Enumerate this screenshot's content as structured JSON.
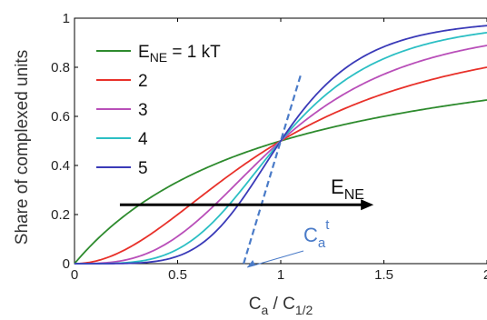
{
  "chart_data": {
    "type": "line",
    "ylabel": "Share of complexed units",
    "xlabel": {
      "main": "C",
      "sub_a": "a",
      "sep": " / C",
      "sub_b": "1/2"
    },
    "xlim": [
      0,
      2
    ],
    "ylim": [
      0,
      1
    ],
    "x_ticks": [
      {
        "value": 0,
        "label": "0"
      },
      {
        "value": 0.5,
        "label": "0.5"
      },
      {
        "value": 1,
        "label": "1"
      },
      {
        "value": 1.5,
        "label": "1.5"
      },
      {
        "value": 2,
        "label": "2"
      }
    ],
    "y_ticks": [
      {
        "value": 0,
        "label": "0"
      },
      {
        "value": 0.2,
        "label": "0.2"
      },
      {
        "value": 0.4,
        "label": "0.4"
      },
      {
        "value": 0.6,
        "label": "0.6"
      },
      {
        "value": 0.8,
        "label": "0.8"
      },
      {
        "value": 1,
        "label": "1"
      }
    ],
    "legend": {
      "placement": "top-left",
      "first_prefix": "E",
      "first_sub": "NE",
      "first_suffix": " = 1 kT"
    },
    "series": [
      {
        "name": "1",
        "label": "E_NE = 1 kT",
        "hill_n": 1,
        "color": "#2e8b2e"
      },
      {
        "name": "2",
        "label": "2",
        "hill_n": 2,
        "color": "#e8312a"
      },
      {
        "name": "3",
        "label": "3",
        "hill_n": 3,
        "color": "#b94fb9"
      },
      {
        "name": "4",
        "label": "4",
        "hill_n": 4,
        "color": "#2cbfc4"
      },
      {
        "name": "5",
        "label": "5",
        "hill_n": 5,
        "color": "#3a3ab8"
      }
    ],
    "arrow_annotation": {
      "main": "E",
      "sub": "NE",
      "x_from": 0.22,
      "x_to": 1.45,
      "y": 0.24,
      "color": "#000000"
    },
    "tangent_annotation": {
      "main": "C",
      "sub": "a",
      "sup": "t",
      "intercept_x": 0.82,
      "touch_x": 1.1,
      "color": "#4a7bc8"
    }
  }
}
